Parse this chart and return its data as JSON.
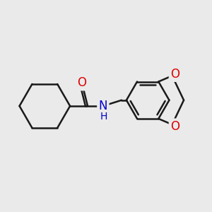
{
  "background_color": "#eaeaea",
  "bond_color": "#1a1a1a",
  "bond_width": 1.8,
  "atom_colors": {
    "O": "#dd0000",
    "N": "#0000cc",
    "C": "#1a1a1a"
  },
  "font_size_atom": 11,
  "font_size_H": 9
}
